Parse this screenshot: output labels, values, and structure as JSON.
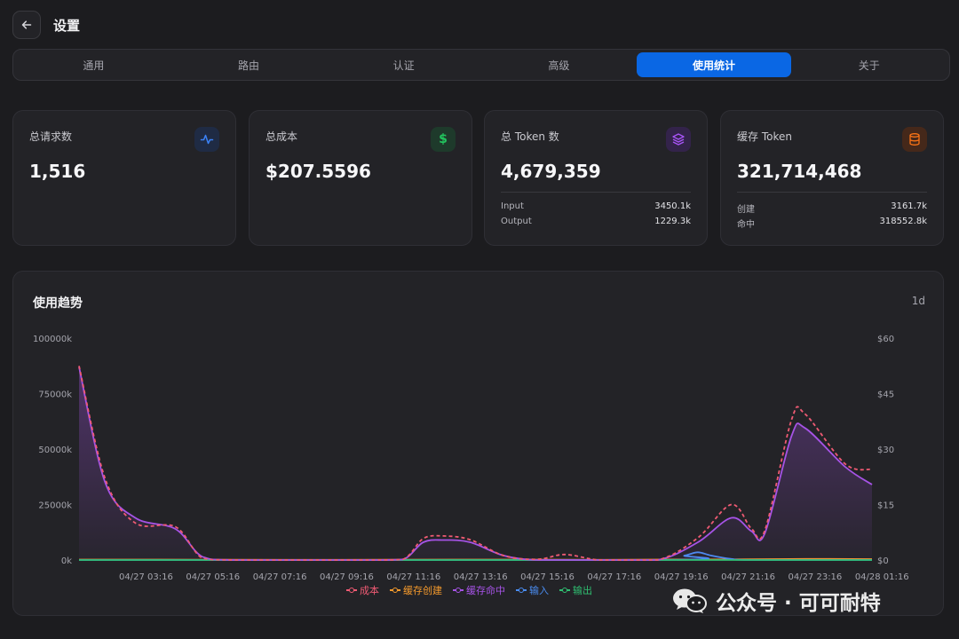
{
  "header": {
    "title": "设置"
  },
  "tabs": [
    {
      "label": "通用",
      "active": false
    },
    {
      "label": "路由",
      "active": false
    },
    {
      "label": "认证",
      "active": false
    },
    {
      "label": "高级",
      "active": false
    },
    {
      "label": "使用统计",
      "active": true
    },
    {
      "label": "关于",
      "active": false
    }
  ],
  "cards": {
    "requests": {
      "label": "总请求数",
      "value": "1,516",
      "icon": "activity-icon",
      "color": "#3b82f6"
    },
    "cost": {
      "label": "总成本",
      "value": "$207.5596",
      "icon": "dollar-icon",
      "color": "#22c55e"
    },
    "tokens": {
      "label": "总 Token 数",
      "value": "4,679,359",
      "icon": "layers-icon",
      "color": "#a855f7",
      "rows": [
        {
          "label": "Input",
          "value": "3450.1k"
        },
        {
          "label": "Output",
          "value": "1229.3k"
        }
      ]
    },
    "cache": {
      "label": "缓存 Token",
      "value": "321,714,468",
      "icon": "database-icon",
      "color": "#f97316",
      "rows": [
        {
          "label": "创建",
          "value": "3161.7k"
        },
        {
          "label": "命中",
          "value": "318552.8k"
        }
      ]
    }
  },
  "trend": {
    "title": "使用趋势",
    "range": "1d"
  },
  "chart_data": {
    "type": "line",
    "title": "使用趋势",
    "categories": [
      "04/27 03:16",
      "04/27 05:16",
      "04/27 07:16",
      "04/27 09:16",
      "04/27 11:16",
      "04/27 13:16",
      "04/27 15:16",
      "04/27 17:16",
      "04/27 19:16",
      "04/27 21:16",
      "04/27 23:16",
      "04/28 01:16"
    ],
    "x_start": 2.16,
    "x_end": 13.15,
    "y_left": {
      "ticks": [
        "0k",
        "25000k",
        "50000k",
        "75000k",
        "100000k"
      ],
      "range": [
        0,
        100000
      ]
    },
    "y_right": {
      "ticks": [
        "$0",
        "$15",
        "$30",
        "$45",
        "$60"
      ],
      "range": [
        0,
        60
      ]
    },
    "legend": "bottom",
    "series": [
      {
        "name": "成本",
        "color": "#ef5a73",
        "axis": "right",
        "dashed": true,
        "points": [
          [
            2.16,
            52.5
          ],
          [
            2.55,
            22
          ],
          [
            3.0,
            10
          ],
          [
            3.6,
            9
          ],
          [
            4.0,
            0.5
          ],
          [
            4.5,
            0
          ],
          [
            6.5,
            0
          ],
          [
            7.0,
            0.2
          ],
          [
            7.3,
            5.8
          ],
          [
            7.6,
            6.5
          ],
          [
            8.0,
            5.5
          ],
          [
            8.5,
            1.2
          ],
          [
            9.0,
            0.2
          ],
          [
            9.4,
            1.5
          ],
          [
            9.8,
            0.3
          ],
          [
            10.0,
            0
          ],
          [
            10.8,
            0
          ],
          [
            11.4,
            6
          ],
          [
            11.9,
            15
          ],
          [
            12.2,
            8.5
          ],
          [
            12.4,
            8
          ],
          [
            12.8,
            38
          ],
          [
            13.0,
            39.5
          ],
          [
            13.6,
            26
          ],
          [
            14.0,
            24.5
          ]
        ]
      },
      {
        "name": "缓存创建",
        "color": "#f59a2c",
        "axis": "left",
        "dashed": false,
        "points": [
          [
            2.16,
            200
          ],
          [
            4.0,
            150
          ],
          [
            6.0,
            100
          ],
          [
            8.0,
            200
          ],
          [
            10.0,
            100
          ],
          [
            11.0,
            250
          ],
          [
            12.0,
            300
          ],
          [
            13.0,
            500
          ],
          [
            14.0,
            400
          ]
        ]
      },
      {
        "name": "缓存命中",
        "color": "#a653e6",
        "axis": "left",
        "dashed": false,
        "fill": true,
        "points": [
          [
            2.16,
            87000
          ],
          [
            2.55,
            35000
          ],
          [
            3.0,
            19000
          ],
          [
            3.6,
            14000
          ],
          [
            4.0,
            1500
          ],
          [
            4.5,
            0
          ],
          [
            6.5,
            0
          ],
          [
            7.0,
            300
          ],
          [
            7.3,
            8000
          ],
          [
            7.6,
            9000
          ],
          [
            8.0,
            8000
          ],
          [
            8.5,
            2000
          ],
          [
            9.0,
            0
          ],
          [
            9.8,
            0
          ],
          [
            10.0,
            0
          ],
          [
            10.8,
            0
          ],
          [
            11.4,
            8000
          ],
          [
            11.9,
            19000
          ],
          [
            12.2,
            13000
          ],
          [
            12.4,
            12000
          ],
          [
            12.8,
            56000
          ],
          [
            13.0,
            59500
          ],
          [
            13.6,
            42000
          ],
          [
            14.0,
            34000
          ]
        ]
      },
      {
        "name": "输入",
        "color": "#4a8cf0",
        "axis": "left",
        "dashed": false,
        "points": [
          [
            2.16,
            0
          ],
          [
            10.8,
            0
          ],
          [
            11.2,
            2000
          ],
          [
            11.4,
            3500
          ],
          [
            11.6,
            2000
          ],
          [
            11.9,
            500
          ],
          [
            12.2,
            0
          ],
          [
            14.0,
            0
          ]
        ]
      },
      {
        "name": "输出",
        "color": "#2fbf71",
        "axis": "left",
        "dashed": false,
        "points": [
          [
            2.16,
            0
          ],
          [
            14.0,
            0
          ]
        ]
      }
    ]
  },
  "watermark": {
    "text": "公众号 · 可可耐特"
  }
}
